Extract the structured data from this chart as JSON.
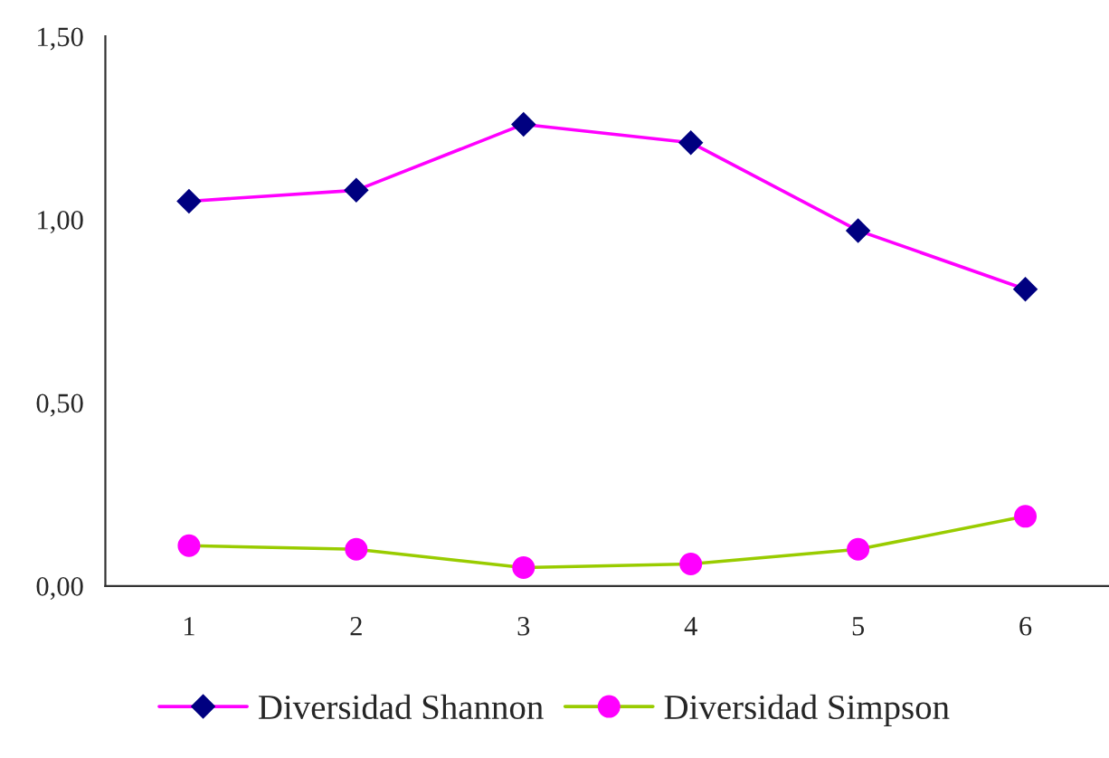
{
  "chart_data": {
    "type": "line",
    "categories": [
      "1",
      "2",
      "3",
      "4",
      "5",
      "6"
    ],
    "series": [
      {
        "name": "Diversidad Shannon",
        "color": "#ff00ff",
        "marker": "diamond",
        "values": [
          1.05,
          1.08,
          1.26,
          1.21,
          0.97,
          0.81
        ]
      },
      {
        "name": "Diversidad Simpson",
        "color": "#99cc00",
        "marker": "circle",
        "values": [
          0.11,
          0.1,
          0.05,
          0.06,
          0.1,
          0.19
        ]
      }
    ],
    "ylim": [
      0,
      1.5
    ],
    "yticks": [
      {
        "value": 0,
        "label": "0,00"
      },
      {
        "value": 0.5,
        "label": "0,50"
      },
      {
        "value": 1.0,
        "label": "1,00"
      },
      {
        "value": 1.5,
        "label": "1,50"
      }
    ],
    "grid": false,
    "legend": "bottom"
  }
}
